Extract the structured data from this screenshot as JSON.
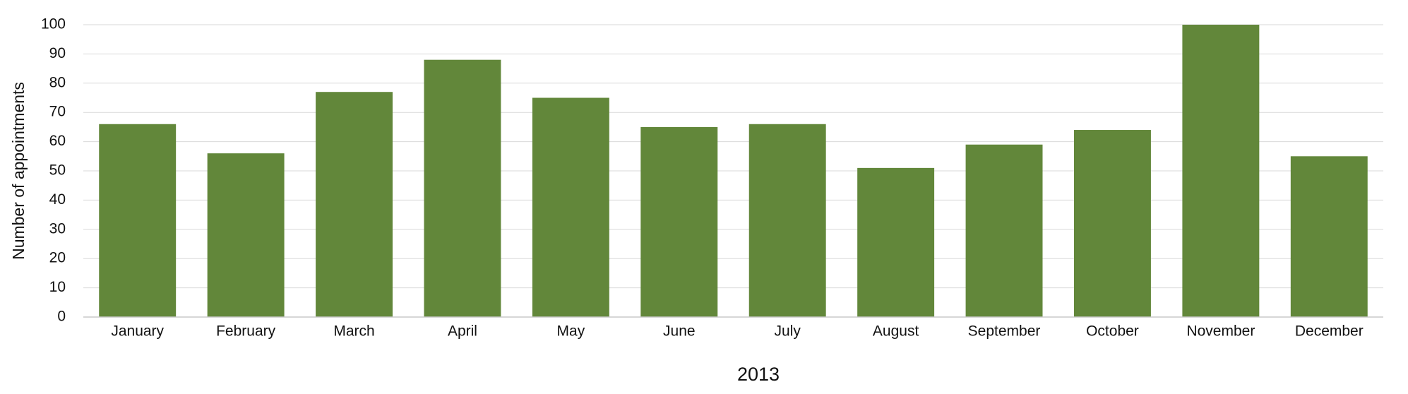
{
  "chart_data": {
    "type": "bar",
    "x_label": "2013",
    "y_label": "Number of appointments",
    "categories": [
      "January",
      "February",
      "March",
      "April",
      "May",
      "June",
      "July",
      "August",
      "September",
      "October",
      "November",
      "December"
    ],
    "values": [
      66,
      56,
      77,
      88,
      75,
      65,
      66,
      51,
      59,
      64,
      100,
      55
    ],
    "color": "#62873a",
    "ylim": [
      0,
      100
    ],
    "yticks": [
      0,
      10,
      20,
      30,
      40,
      50,
      60,
      70,
      80,
      90,
      100
    ],
    "grid": true
  }
}
